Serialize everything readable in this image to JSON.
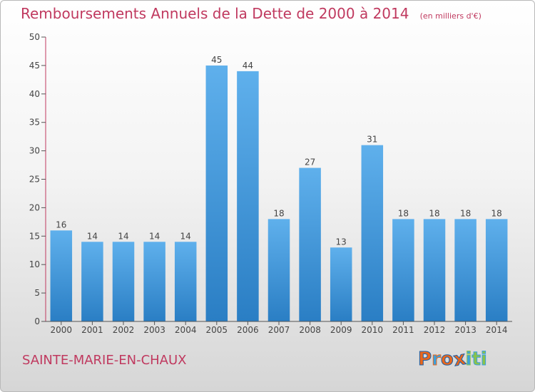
{
  "header": {
    "title": "Remboursements Annuels de la Dette de 2000 à 2014",
    "subtitle": "(en milliers d'€)"
  },
  "footer": {
    "commune": "SAINTE-MARIE-EN-CHAUX",
    "logo_text": "Proxiti"
  },
  "colors": {
    "title": "#c0395f",
    "bar_top": "#5fb0ec",
    "bar_bottom": "#2a7ec4",
    "axis_accent": "#c0395f"
  },
  "chart_data": {
    "type": "bar",
    "categories": [
      "2000",
      "2001",
      "2002",
      "2003",
      "2004",
      "2005",
      "2006",
      "2007",
      "2008",
      "2009",
      "2010",
      "2011",
      "2012",
      "2013",
      "2014"
    ],
    "values": [
      16,
      14,
      14,
      14,
      14,
      45,
      44,
      18,
      27,
      13,
      31,
      18,
      18,
      18,
      18
    ],
    "title": "Remboursements Annuels de la Dette de 2000 à 2014",
    "xlabel": "",
    "ylabel": "",
    "ylim": [
      0,
      50
    ],
    "yticks": [
      0,
      5,
      10,
      15,
      20,
      25,
      30,
      35,
      40,
      45,
      50
    ],
    "grid": false,
    "legend": "none"
  }
}
